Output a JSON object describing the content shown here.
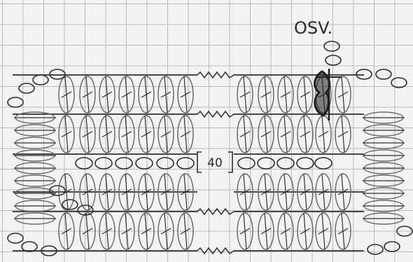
{
  "diagram": {
    "corner_label": "OSV.",
    "center_count": "40"
  },
  "colors": {
    "paper": "#f3f3f1",
    "grid": "#b9b9b9",
    "pencil": "#2f2f2f",
    "pencil_light": "#6a6a6a",
    "marker": "#1f1f1f"
  }
}
